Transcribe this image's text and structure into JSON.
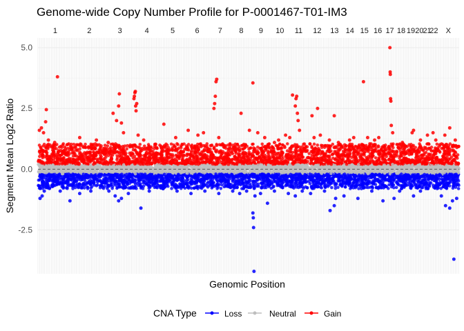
{
  "chart_data": {
    "type": "scatter",
    "title": "Genome-wide Copy Number Profile for P-0001467-T01-IM3",
    "xlabel": "Genomic Position",
    "ylabel": "Segment Mean Log2 Ratio",
    "ylim": [
      -4.3,
      5.4
    ],
    "yticks": [
      -2.5,
      0.0,
      2.5,
      5.0
    ],
    "ytick_labels": [
      "-2.5",
      "0.0",
      "2.5",
      "5.0"
    ],
    "grid": true,
    "legend_position": "bottom",
    "colors": {
      "Loss": "#0000ff",
      "Neutral": "#bebebe",
      "Gain": "#ff0000"
    },
    "chromosomes": [
      {
        "name": "1",
        "start": 0,
        "end": 248
      },
      {
        "name": "2",
        "start": 248,
        "end": 490
      },
      {
        "name": "3",
        "start": 490,
        "end": 688
      },
      {
        "name": "4",
        "start": 688,
        "end": 878
      },
      {
        "name": "5",
        "start": 878,
        "end": 1059
      },
      {
        "name": "6",
        "start": 1059,
        "end": 1230
      },
      {
        "name": "7",
        "start": 1230,
        "end": 1389
      },
      {
        "name": "8",
        "start": 1389,
        "end": 1534
      },
      {
        "name": "9",
        "start": 1534,
        "end": 1672
      },
      {
        "name": "10",
        "start": 1672,
        "end": 1806
      },
      {
        "name": "11",
        "start": 1806,
        "end": 1941
      },
      {
        "name": "12",
        "start": 1941,
        "end": 2074
      },
      {
        "name": "13",
        "start": 2074,
        "end": 2189
      },
      {
        "name": "14",
        "start": 2189,
        "end": 2296
      },
      {
        "name": "15",
        "start": 2296,
        "end": 2398
      },
      {
        "name": "16",
        "start": 2398,
        "end": 2488
      },
      {
        "name": "17",
        "start": 2488,
        "end": 2571
      },
      {
        "name": "18",
        "start": 2571,
        "end": 2651
      },
      {
        "name": "19",
        "start": 2651,
        "end": 2710
      },
      {
        "name": "20",
        "start": 2710,
        "end": 2774
      },
      {
        "name": "21",
        "start": 2774,
        "end": 2821
      },
      {
        "name": "22",
        "start": 2821,
        "end": 2872
      },
      {
        "name": "X",
        "start": 2872,
        "end": 3028
      }
    ],
    "series": [
      {
        "name": "Gain",
        "outliers": [
          [
            10,
            1.6
          ],
          [
            25,
            1.7
          ],
          [
            40,
            1.5
          ],
          [
            60,
            2.45
          ],
          [
            55,
            1.95
          ],
          [
            75,
            1.2
          ],
          [
            140,
            3.8
          ],
          [
            120,
            1.1
          ],
          [
            300,
            1.3
          ],
          [
            420,
            1.2
          ],
          [
            440,
            1.0
          ],
          [
            505,
            1.1
          ],
          [
            540,
            2.3
          ],
          [
            565,
            2.0
          ],
          [
            580,
            2.6
          ],
          [
            585,
            3.1
          ],
          [
            600,
            1.9
          ],
          [
            615,
            1.5
          ],
          [
            690,
            2.9
          ],
          [
            693,
            3.0
          ],
          [
            697,
            3.15
          ],
          [
            700,
            3.2
          ],
          [
            702,
            2.6
          ],
          [
            705,
            2.4
          ],
          [
            710,
            2.7
          ],
          [
            720,
            1.4
          ],
          [
            760,
            1.2
          ],
          [
            905,
            1.85
          ],
          [
            990,
            1.3
          ],
          [
            1080,
            1.6
          ],
          [
            1150,
            1.4
          ],
          [
            1190,
            1.5
          ],
          [
            1265,
            2.5
          ],
          [
            1270,
            2.7
          ],
          [
            1275,
            3.0
          ],
          [
            1280,
            3.6
          ],
          [
            1285,
            3.7
          ],
          [
            1300,
            1.3
          ],
          [
            1330,
            1.0
          ],
          [
            1460,
            2.3
          ],
          [
            1520,
            1.6
          ],
          [
            1545,
            3.55
          ],
          [
            1580,
            1.5
          ],
          [
            1630,
            1.3
          ],
          [
            1700,
            1.1
          ],
          [
            1730,
            1.2
          ],
          [
            1780,
            1.4
          ],
          [
            1810,
            1.3
          ],
          [
            1830,
            3.05
          ],
          [
            1850,
            2.6
          ],
          [
            1855,
            2.9
          ],
          [
            1860,
            3.0
          ],
          [
            1865,
            2.3
          ],
          [
            1870,
            2.0
          ],
          [
            1880,
            1.6
          ],
          [
            1970,
            2.2
          ],
          [
            1985,
            1.3
          ],
          [
            2010,
            2.5
          ],
          [
            2030,
            1.4
          ],
          [
            2095,
            1.2
          ],
          [
            2130,
            2.2
          ],
          [
            2160,
            1.1
          ],
          [
            2240,
            1.2
          ],
          [
            2270,
            1.3
          ],
          [
            2340,
            3.6
          ],
          [
            2370,
            1.3
          ],
          [
            2420,
            1.2
          ],
          [
            2450,
            1.3
          ],
          [
            2530,
            5.0
          ],
          [
            2532,
            4.0
          ],
          [
            2533,
            3.9
          ],
          [
            2535,
            2.9
          ],
          [
            2537,
            2.8
          ],
          [
            2540,
            1.8
          ],
          [
            2550,
            1.5
          ],
          [
            2620,
            1.1
          ],
          [
            2690,
            1.5
          ],
          [
            2700,
            1.6
          ],
          [
            2750,
            1.2
          ],
          [
            2800,
            1.4
          ],
          [
            2840,
            1.5
          ],
          [
            2860,
            1.2
          ],
          [
            2925,
            1.4
          ],
          [
            2960,
            1.7
          ],
          [
            3000,
            1.2
          ]
        ]
      },
      {
        "name": "Loss",
        "outliers": [
          [
            15,
            -1.2
          ],
          [
            30,
            -1.1
          ],
          [
            45,
            -0.9
          ],
          [
            160,
            -0.9
          ],
          [
            230,
            -1.3
          ],
          [
            300,
            -1.0
          ],
          [
            380,
            -0.9
          ],
          [
            510,
            -0.9
          ],
          [
            555,
            -1.1
          ],
          [
            580,
            -1.3
          ],
          [
            600,
            -1.2
          ],
          [
            650,
            -1.0
          ],
          [
            740,
            -1.6
          ],
          [
            800,
            -0.9
          ],
          [
            900,
            -0.8
          ],
          [
            1000,
            -0.9
          ],
          [
            1100,
            -1.0
          ],
          [
            1200,
            -0.9
          ],
          [
            1300,
            -1.0
          ],
          [
            1400,
            -0.9
          ],
          [
            1450,
            -1.0
          ],
          [
            1500,
            -0.9
          ],
          [
            1545,
            -1.8
          ],
          [
            1548,
            -2.0
          ],
          [
            1550,
            -2.4
          ],
          [
            1553,
            -4.2
          ],
          [
            1560,
            -1.1
          ],
          [
            1600,
            -1.0
          ],
          [
            1650,
            -1.4
          ],
          [
            1700,
            -0.9
          ],
          [
            1800,
            -1.0
          ],
          [
            1850,
            -1.1
          ],
          [
            1900,
            -0.9
          ],
          [
            1960,
            -1.0
          ],
          [
            2060,
            -0.9
          ],
          [
            2100,
            -1.7
          ],
          [
            2130,
            -1.5
          ],
          [
            2140,
            -1.2
          ],
          [
            2200,
            -1.1
          ],
          [
            2300,
            -1.2
          ],
          [
            2400,
            -0.9
          ],
          [
            2480,
            -1.3
          ],
          [
            2560,
            -1.2
          ],
          [
            2600,
            -0.9
          ],
          [
            2700,
            -1.1
          ],
          [
            2750,
            -0.9
          ],
          [
            2900,
            -1.1
          ],
          [
            2930,
            -1.5
          ],
          [
            2960,
            -1.6
          ],
          [
            2980,
            -1.3
          ],
          [
            2990,
            -3.7
          ],
          [
            3010,
            -1.2
          ]
        ]
      }
    ]
  }
}
